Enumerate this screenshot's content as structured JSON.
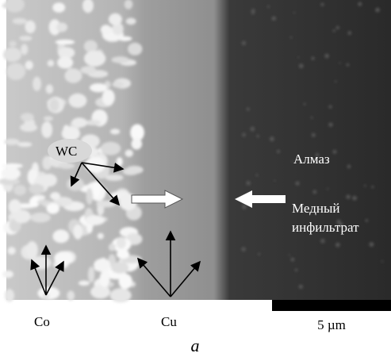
{
  "labels": {
    "wc": "WC",
    "diamond": "Алмаз",
    "infiltrate_line1": "Медный",
    "infiltrate_line2": "инфильтрат",
    "co": "Co",
    "cu": "Cu"
  },
  "scale_bar": "5 µm",
  "caption": "а"
}
